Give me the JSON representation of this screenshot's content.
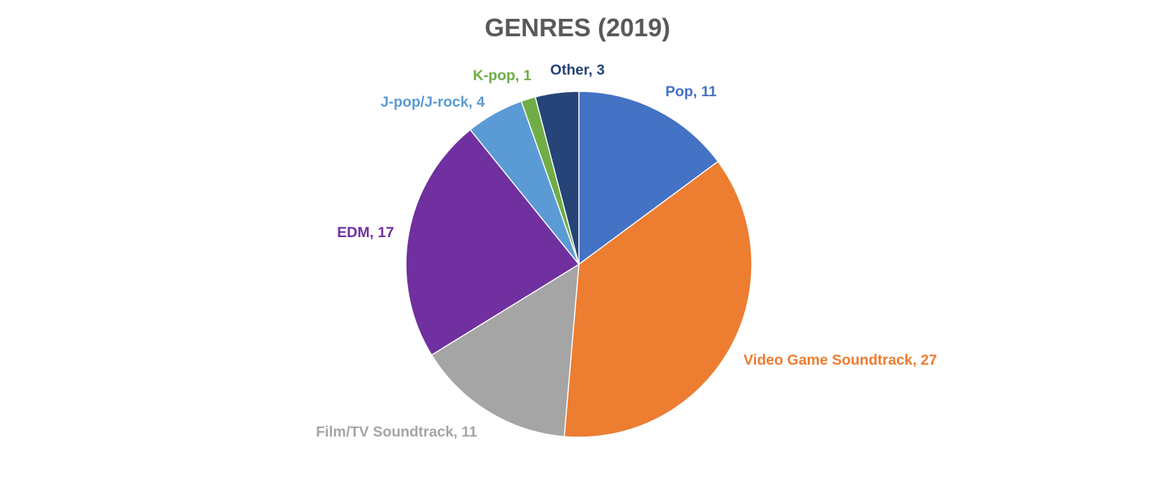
{
  "chart_data": {
    "type": "pie",
    "title": "GENRES (2019)",
    "slices": [
      {
        "label": "Pop",
        "value": 11,
        "text": "Pop, 11",
        "color": "#4472C4"
      },
      {
        "label": "Video Game Soundtrack",
        "value": 27,
        "text": "Video Game Soundtrack, 27",
        "color": "#ED7D31"
      },
      {
        "label": "Film/TV Soundtrack",
        "value": 11,
        "text": "Film/TV Soundtrack, 11",
        "color": "#A5A5A5"
      },
      {
        "label": "EDM",
        "value": 17,
        "text": "EDM, 17",
        "color": "#7030A0"
      },
      {
        "label": "J-pop/J-rock",
        "value": 4,
        "text": "J-pop/J-rock, 4",
        "color": "#5B9BD5"
      },
      {
        "label": "K-pop",
        "value": 1,
        "text": "K-pop, 1",
        "color": "#70AD47"
      },
      {
        "label": "Other",
        "value": 3,
        "text": "Other, 3",
        "color": "#264478"
      }
    ],
    "start_angle": "12 o'clock",
    "direction": "clockwise",
    "legend": "none"
  }
}
